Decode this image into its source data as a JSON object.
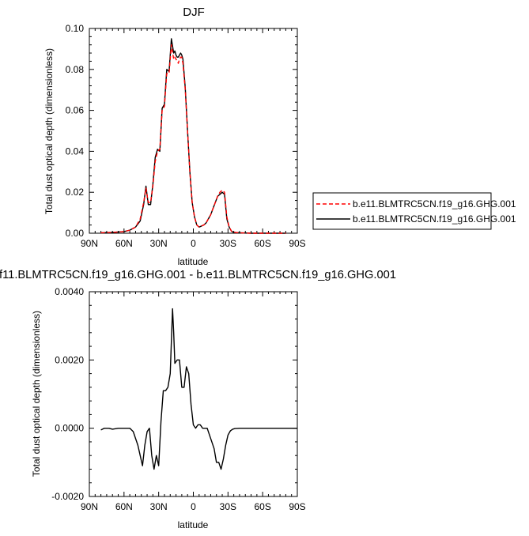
{
  "chart_data": [
    {
      "type": "line",
      "title": "DJF",
      "xlabel": "latitude",
      "ylabel": "Total dust optical depth (dimensionless)",
      "xlim": [
        90,
        -90
      ],
      "ylim": [
        0,
        0.1
      ],
      "x_ticks": [
        90,
        60,
        30,
        0,
        -30,
        -60,
        -90
      ],
      "x_tick_labels": [
        "90N",
        "60N",
        "30N",
        "0",
        "30S",
        "60S",
        "90S"
      ],
      "y_ticks": [
        0,
        0.02,
        0.04,
        0.06,
        0.08,
        0.1
      ],
      "y_tick_labels": [
        "0.00",
        "0.02",
        "0.04",
        "0.06",
        "0.08",
        "0.10"
      ],
      "legend": {
        "position": "right"
      },
      "grid": false,
      "series": [
        {
          "name": "b.e11.BLMTRC5CN.f19_g16.GHG.001",
          "color": "#ff0000",
          "dash": "dashed",
          "x": [
            80,
            70,
            60,
            55,
            50,
            46,
            43,
            41,
            39,
            37,
            35,
            33,
            31,
            29,
            27,
            25,
            23,
            21,
            19,
            17,
            16,
            15,
            14,
            13,
            12,
            11,
            10,
            9,
            7,
            5,
            3,
            1,
            -1,
            -3,
            -5,
            -7,
            -9,
            -11,
            -13,
            -15,
            -17,
            -19,
            -21,
            -23,
            -25,
            -27,
            -29,
            -31,
            -33,
            -35,
            -40,
            -45,
            -50,
            -60,
            -70,
            -80
          ],
          "values": [
            0.0002,
            0.0004,
            0.0008,
            0.0015,
            0.003,
            0.007,
            0.015,
            0.022,
            0.015,
            0.015,
            0.023,
            0.035,
            0.04,
            0.041,
            0.06,
            0.062,
            0.078,
            0.078,
            0.092,
            0.085,
            0.086,
            0.085,
            0.084,
            0.083,
            0.085,
            0.086,
            0.086,
            0.083,
            0.07,
            0.05,
            0.03,
            0.015,
            0.008,
            0.004,
            0.003,
            0.0035,
            0.004,
            0.005,
            0.007,
            0.009,
            0.012,
            0.015,
            0.018,
            0.02,
            0.021,
            0.02,
            0.008,
            0.003,
            0.001,
            0.0004,
            0.0002,
            0.0001,
            0,
            0,
            0,
            0
          ]
        },
        {
          "name": "b.e11.BLMTRC5CN.f19_g16.GHG.001",
          "color": "#000000",
          "dash": "solid",
          "x": [
            80,
            70,
            60,
            55,
            50,
            46,
            43,
            41,
            39,
            37,
            35,
            33,
            31,
            29,
            27,
            25,
            23,
            21,
            19,
            17,
            16,
            15,
            14,
            13,
            12,
            11,
            10,
            9,
            7,
            5,
            3,
            1,
            -1,
            -3,
            -5,
            -7,
            -9,
            -11,
            -13,
            -15,
            -17,
            -19,
            -21,
            -23,
            -25,
            -27,
            -29,
            -31,
            -33,
            -35,
            -40,
            -45,
            -50,
            -60,
            -70,
            -80
          ],
          "values": [
            0.0002,
            0.0004,
            0.0008,
            0.0015,
            0.003,
            0.006,
            0.014,
            0.023,
            0.014,
            0.014,
            0.024,
            0.037,
            0.041,
            0.04,
            0.061,
            0.063,
            0.08,
            0.079,
            0.095,
            0.088,
            0.089,
            0.087,
            0.086,
            0.086,
            0.087,
            0.088,
            0.087,
            0.085,
            0.071,
            0.05,
            0.03,
            0.015,
            0.008,
            0.004,
            0.003,
            0.0035,
            0.004,
            0.005,
            0.007,
            0.009,
            0.012,
            0.015,
            0.018,
            0.019,
            0.02,
            0.019,
            0.007,
            0.003,
            0.001,
            0.0004,
            0.0002,
            0.0001,
            0,
            0,
            0,
            0
          ]
        }
      ]
    },
    {
      "type": "line",
      "title": "f11.BLMTRC5CN.f19_g16.GHG.001 - b.e11.BLMTRC5CN.f19_g16.GHG.001",
      "xlabel": "latitude",
      "ylabel": "Total dust optical depth (dimensionless)",
      "xlim": [
        90,
        -90
      ],
      "ylim": [
        -0.002,
        0.004
      ],
      "x_ticks": [
        90,
        60,
        30,
        0,
        -30,
        -60,
        -90
      ],
      "x_tick_labels": [
        "90N",
        "60N",
        "30N",
        "0",
        "30S",
        "60S",
        "90S"
      ],
      "y_ticks": [
        -0.002,
        0,
        0.002,
        0.004
      ],
      "y_tick_labels": [
        "-0.0020",
        "0.0000",
        "0.0020",
        "0.0040"
      ],
      "grid": false,
      "series": [
        {
          "color": "#000000",
          "dash": "solid",
          "x": [
            80,
            77,
            73,
            70,
            65,
            60,
            55,
            52,
            50,
            48,
            46,
            44,
            42,
            40,
            38,
            36,
            34,
            32,
            30,
            28,
            26,
            24,
            22,
            20,
            18,
            17,
            16,
            14,
            12,
            10,
            8,
            6,
            4,
            2,
            0,
            -2,
            -4,
            -6,
            -8,
            -10,
            -12,
            -14,
            -16,
            -18,
            -20,
            -22,
            -24,
            -26,
            -28,
            -30,
            -32,
            -34,
            -36,
            -40,
            -45,
            -50,
            -60,
            -70,
            -80,
            -90
          ],
          "values": [
            -5e-05,
            0,
            0,
            -3e-05,
            0,
            0,
            0,
            -0.0001,
            -0.0003,
            -0.0005,
            -0.0008,
            -0.0011,
            -0.0005,
            -0.0001,
            0,
            -0.0008,
            -0.0012,
            -0.0008,
            -0.0011,
            0.0002,
            0.0011,
            0.0011,
            0.0012,
            0.0016,
            0.0035,
            0.0028,
            0.0019,
            0.002,
            0.002,
            0.0012,
            0.0012,
            0.0018,
            0.0016,
            0.0007,
            0.0001,
            0,
            0.0001,
            0.0001,
            0,
            0,
            0,
            -0.0002,
            -0.0004,
            -0.0006,
            -0.001,
            -0.001,
            -0.0012,
            -0.0009,
            -0.0005,
            -0.0002,
            -8e-05,
            -3e-05,
            -1e-05,
            0,
            0,
            0,
            0,
            0,
            0,
            0
          ]
        }
      ]
    }
  ]
}
